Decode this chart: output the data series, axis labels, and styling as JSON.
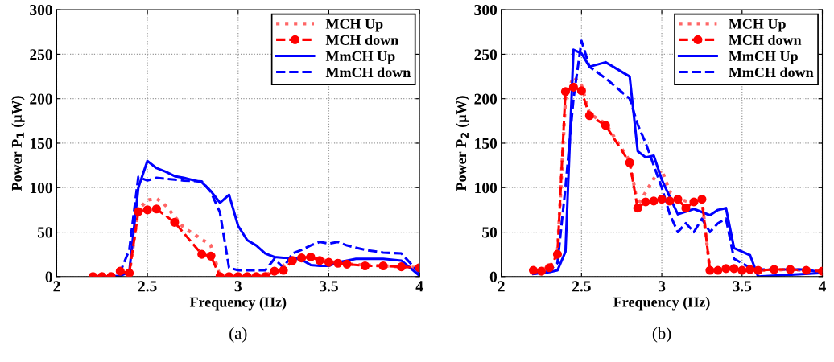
{
  "chart_data": [
    {
      "type": "line",
      "xlabel": "Frequency (Hz)",
      "ylabel": "Power P$_{1}$ (μW)",
      "xlim": [
        2,
        4
      ],
      "ylim": [
        0,
        300
      ],
      "xticks": [
        2,
        2.5,
        3,
        3.5,
        4
      ],
      "yticks": [
        0,
        50,
        100,
        150,
        200,
        250,
        300
      ],
      "grid": true,
      "legend": "top right",
      "annotations": [
        "(a)"
      ],
      "series": [
        {
          "name": "MCH Up",
          "color": "#ff6666",
          "line_style": "dotted",
          "marker": "none",
          "x": [
            2.2,
            2.3,
            2.4,
            2.45,
            2.5,
            2.55,
            2.6,
            2.7,
            2.8,
            2.85,
            2.9,
            3.0,
            3.1,
            3.2,
            3.3,
            3.4,
            3.5,
            3.6,
            3.8,
            4.0
          ],
          "values": [
            0,
            0,
            3,
            75,
            86,
            88,
            80,
            55,
            42,
            35,
            0,
            0,
            0,
            5,
            20,
            22,
            17,
            14,
            12,
            10
          ]
        },
        {
          "name": "MCH down",
          "color": "#ff0000",
          "line_style": "dashed",
          "marker": "circle",
          "x": [
            2.2,
            2.25,
            2.3,
            2.35,
            2.4,
            2.45,
            2.5,
            2.55,
            2.65,
            2.8,
            2.85,
            2.9,
            2.95,
            3.0,
            3.05,
            3.1,
            3.15,
            3.2,
            3.25,
            3.3,
            3.35,
            3.4,
            3.45,
            3.5,
            3.55,
            3.6,
            3.7,
            3.8,
            3.9,
            4.0
          ],
          "values": [
            0,
            0,
            0,
            6,
            4,
            73,
            75,
            76,
            61,
            25,
            23,
            0,
            0,
            0,
            0,
            0,
            0,
            6,
            7,
            18,
            21,
            22,
            18,
            16,
            15,
            14,
            12,
            12,
            11,
            10
          ]
        },
        {
          "name": "MmCH Up",
          "color": "#0000ff",
          "line_style": "solid",
          "marker": "none",
          "x": [
            2.2,
            2.3,
            2.35,
            2.4,
            2.45,
            2.5,
            2.55,
            2.6,
            2.65,
            2.7,
            2.8,
            2.85,
            2.9,
            2.95,
            3.0,
            3.05,
            3.1,
            3.15,
            3.2,
            3.25,
            3.3,
            3.35,
            3.4,
            3.45,
            3.5,
            3.55,
            3.6,
            3.65,
            3.7,
            3.8,
            3.9,
            4.0
          ],
          "values": [
            0,
            0,
            1,
            5,
            100,
            130,
            122,
            118,
            113,
            111,
            106,
            96,
            83,
            92,
            57,
            41,
            35,
            26,
            22,
            21,
            21,
            19,
            13,
            12,
            12,
            16,
            18,
            20,
            20,
            20,
            18,
            1
          ]
        },
        {
          "name": "MmCH down",
          "color": "#0000ff",
          "line_style": "dashed",
          "marker": "none",
          "x": [
            2.2,
            2.3,
            2.35,
            2.4,
            2.45,
            2.5,
            2.55,
            2.6,
            2.7,
            2.8,
            2.85,
            2.9,
            2.95,
            3.0,
            3.05,
            3.1,
            3.15,
            3.2,
            3.25,
            3.3,
            3.35,
            3.4,
            3.45,
            3.5,
            3.55,
            3.6,
            3.7,
            3.8,
            3.9,
            4.0
          ],
          "values": [
            0,
            0,
            5,
            30,
            112,
            108,
            111,
            110,
            108,
            107,
            95,
            72,
            10,
            7,
            7,
            7,
            7,
            20,
            10,
            26,
            30,
            35,
            39,
            37,
            39,
            35,
            30,
            27,
            26,
            4
          ]
        }
      ]
    },
    {
      "type": "line",
      "xlabel": "Frequency (Hz)",
      "ylabel": "Power P$_{2}$ (μW)",
      "xlim": [
        2,
        4
      ],
      "ylim": [
        0,
        300
      ],
      "xticks": [
        2,
        2.5,
        3,
        3.5,
        4
      ],
      "yticks": [
        0,
        50,
        100,
        150,
        200,
        250,
        300
      ],
      "grid": true,
      "legend": "top right",
      "annotations": [
        "(b)"
      ],
      "series": [
        {
          "name": "MCH Up",
          "color": "#ff6666",
          "line_style": "dotted",
          "marker": "none",
          "x": [
            2.2,
            2.3,
            2.35,
            2.4,
            2.45,
            2.5,
            2.55,
            2.65,
            2.8,
            2.85,
            2.95,
            3.0,
            3.05,
            3.1,
            3.2,
            3.25,
            3.3,
            3.4,
            3.6,
            3.8,
            4.0
          ],
          "values": [
            7,
            10,
            25,
            200,
            225,
            215,
            183,
            172,
            130,
            80,
            110,
            120,
            95,
            88,
            82,
            86,
            7,
            8,
            7,
            8,
            6
          ]
        },
        {
          "name": "MCH down",
          "color": "#ff0000",
          "line_style": "dashed",
          "marker": "circle",
          "x": [
            2.2,
            2.25,
            2.3,
            2.35,
            2.4,
            2.45,
            2.5,
            2.55,
            2.65,
            2.8,
            2.85,
            2.9,
            2.95,
            3.0,
            3.05,
            3.1,
            3.15,
            3.2,
            3.25,
            3.3,
            3.35,
            3.4,
            3.45,
            3.5,
            3.55,
            3.6,
            3.7,
            3.8,
            3.9,
            4.0
          ],
          "values": [
            7,
            6,
            10,
            25,
            208,
            213,
            209,
            181,
            170,
            128,
            77,
            84,
            85,
            87,
            85,
            87,
            77,
            84,
            87,
            7,
            7,
            9,
            9,
            7,
            8,
            7,
            8,
            8,
            7,
            6
          ]
        },
        {
          "name": "MmCH Up",
          "color": "#0000ff",
          "line_style": "solid",
          "marker": "none",
          "x": [
            2.2,
            2.3,
            2.35,
            2.4,
            2.45,
            2.5,
            2.55,
            2.65,
            2.8,
            2.85,
            2.9,
            2.95,
            3.0,
            3.1,
            3.2,
            3.3,
            3.35,
            3.4,
            3.45,
            3.55,
            3.6,
            4.0
          ],
          "values": [
            3,
            5,
            7,
            28,
            255,
            251,
            236,
            241,
            225,
            141,
            134,
            136,
            109,
            70,
            76,
            69,
            75,
            77,
            32,
            24,
            0,
            4
          ]
        },
        {
          "name": "MmCH down",
          "color": "#0000ff",
          "line_style": "dashed",
          "marker": "none",
          "x": [
            2.2,
            2.3,
            2.35,
            2.4,
            2.45,
            2.5,
            2.55,
            2.65,
            2.8,
            2.85,
            2.9,
            3.0,
            3.05,
            3.1,
            3.15,
            3.2,
            3.25,
            3.3,
            3.35,
            3.4,
            3.45,
            3.5,
            3.55,
            3.6,
            3.8,
            3.9,
            4.0
          ],
          "values": [
            3,
            7,
            15,
            100,
            200,
            265,
            236,
            223,
            200,
            171,
            150,
            100,
            70,
            50,
            60,
            50,
            65,
            50,
            60,
            65,
            20,
            15,
            10,
            8,
            8,
            8,
            4
          ]
        }
      ]
    }
  ]
}
